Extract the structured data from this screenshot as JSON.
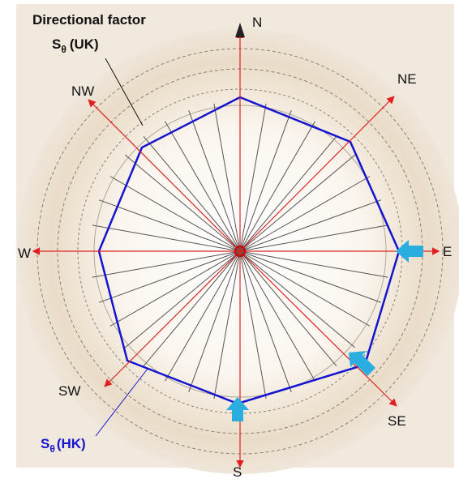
{
  "title": "Directional factor",
  "uk_label": {
    "symbol": "S",
    "subscript": "θ",
    "suffix": "(UK)"
  },
  "hk_label": {
    "symbol": "S",
    "subscript": "θ",
    "suffix": "(HK)"
  },
  "directions": {
    "n": "N",
    "ne": "NE",
    "e": "E",
    "se": "SE",
    "s": "S",
    "sw": "SW",
    "w": "W",
    "nw": "NW"
  }
}
